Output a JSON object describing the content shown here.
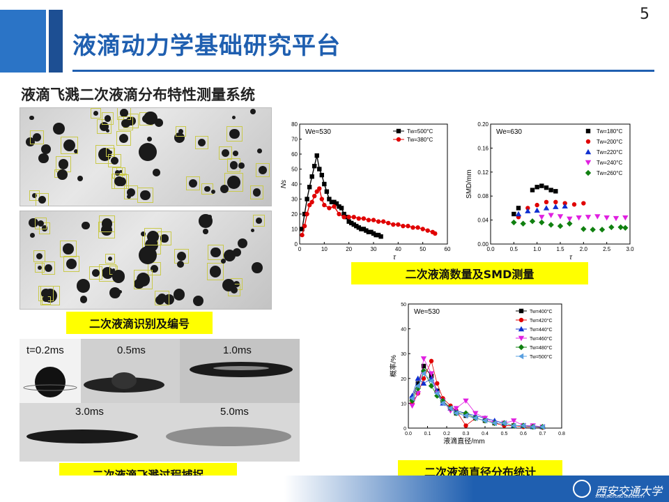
{
  "page_number": "5",
  "title": "液滴动力学基础研究平台",
  "subtitle": "液滴飞溅二次液滴分布特性测量系统",
  "captions": {
    "identify": "二次液滴识别及编号",
    "count_smd": "二次液滴数量及SMD测量",
    "splash": "二次液滴飞溅过程捕捉",
    "diameter": "二次液滴直径分布统计"
  },
  "splash_labels": [
    "t=0.2ms",
    "0.5ms",
    "1.0ms",
    "3.0ms",
    "5.0ms"
  ],
  "logo": {
    "name": "西安交通大学",
    "sub": "XI'AN JIAOTONG UNIVERSITY"
  },
  "colors": {
    "title_blue": "#1f5fb0",
    "bar_light": "#2b74c6",
    "caption_bg": "#ffff00"
  },
  "chart_data": [
    {
      "type": "line",
      "annotation": "We≈530",
      "xlabel": "τ",
      "ylabel": "Ns",
      "xlim": [
        0,
        60
      ],
      "ylim": [
        0,
        80
      ],
      "xticks": [
        0,
        10,
        20,
        30,
        40,
        50,
        60
      ],
      "yticks": [
        0,
        10,
        20,
        30,
        40,
        50,
        60,
        70,
        80
      ],
      "series": [
        {
          "name": "Tw=500°C",
          "color": "#000000",
          "marker": "square",
          "x": [
            1,
            2,
            3,
            4,
            5,
            6,
            7,
            8,
            9,
            10,
            11,
            12,
            13,
            14,
            15,
            16,
            17,
            18,
            19,
            20,
            21,
            22,
            23,
            24,
            25,
            26,
            27,
            28,
            29,
            30,
            31,
            32,
            33
          ],
          "y": [
            10,
            20,
            30,
            38,
            45,
            52,
            59,
            50,
            46,
            40,
            35,
            30,
            28,
            28,
            27,
            25,
            24,
            20,
            18,
            15,
            14,
            13,
            12,
            11,
            10,
            10,
            9,
            8,
            8,
            7,
            6,
            6,
            5
          ]
        },
        {
          "name": "Tw=380°C",
          "color": "#e00000",
          "marker": "circle",
          "x": [
            1,
            2,
            3,
            4,
            5,
            6,
            7,
            8,
            9,
            10,
            12,
            14,
            16,
            18,
            20,
            22,
            24,
            26,
            28,
            30,
            32,
            34,
            36,
            38,
            40,
            42,
            44,
            46,
            48,
            50,
            52,
            54,
            55
          ],
          "y": [
            6,
            12,
            20,
            26,
            28,
            32,
            35,
            37,
            30,
            26,
            24,
            25,
            20,
            18,
            18,
            18,
            17,
            17,
            16,
            16,
            15,
            15,
            14,
            13,
            13,
            12,
            12,
            11,
            11,
            10,
            9,
            8,
            7
          ]
        }
      ]
    },
    {
      "type": "scatter",
      "annotation": "We≈630",
      "xlabel": "τ",
      "ylabel": "SMD/mm",
      "xlim": [
        0,
        3.0
      ],
      "ylim": [
        0,
        0.2
      ],
      "xticks": [
        0.0,
        0.5,
        1.0,
        1.5,
        2.0,
        2.5,
        3.0
      ],
      "yticks": [
        0.0,
        0.04,
        0.08,
        0.12,
        0.16,
        0.2
      ],
      "series": [
        {
          "name": "Tw=180°C",
          "color": "#000000",
          "marker": "square",
          "x": [
            0.5,
            0.6,
            0.9,
            1.0,
            1.1,
            1.2,
            1.3,
            1.4
          ],
          "y": [
            0.05,
            0.06,
            0.09,
            0.095,
            0.097,
            0.094,
            0.09,
            0.088
          ]
        },
        {
          "name": "Tw=200°C",
          "color": "#e00000",
          "marker": "circle",
          "x": [
            0.6,
            0.8,
            1.0,
            1.2,
            1.4,
            1.6,
            1.8,
            2.0
          ],
          "y": [
            0.045,
            0.06,
            0.065,
            0.07,
            0.07,
            0.068,
            0.066,
            0.068
          ]
        },
        {
          "name": "Tw=220°C",
          "color": "#1030d0",
          "marker": "triangle",
          "x": [
            0.6,
            0.8,
            1.0,
            1.2,
            1.4,
            1.6
          ],
          "y": [
            0.05,
            0.055,
            0.056,
            0.06,
            0.062,
            0.063
          ]
        },
        {
          "name": "Tw=240°C",
          "color": "#e020e0",
          "marker": "triangle-down",
          "x": [
            1.1,
            1.3,
            1.5,
            1.7,
            1.9,
            2.1,
            2.3,
            2.5,
            2.7,
            2.9
          ],
          "y": [
            0.045,
            0.048,
            0.046,
            0.042,
            0.044,
            0.045,
            0.046,
            0.044,
            0.043,
            0.044
          ]
        },
        {
          "name": "Tw=260°C",
          "color": "#108010",
          "marker": "diamond",
          "x": [
            0.5,
            0.7,
            0.9,
            1.1,
            1.3,
            1.5,
            1.7,
            2.0,
            2.2,
            2.4,
            2.6,
            2.8,
            2.9
          ],
          "y": [
            0.036,
            0.034,
            0.038,
            0.036,
            0.032,
            0.03,
            0.034,
            0.025,
            0.024,
            0.024,
            0.028,
            0.028,
            0.027
          ]
        }
      ]
    },
    {
      "type": "line",
      "annotation": "We≈530",
      "xlabel": "液滴直径/mm",
      "ylabel": "概率/%",
      "xlim": [
        0,
        0.8
      ],
      "ylim": [
        0,
        50
      ],
      "xticks": [
        0.0,
        0.1,
        0.2,
        0.3,
        0.4,
        0.5,
        0.6,
        0.7,
        0.8
      ],
      "yticks": [
        0,
        10,
        20,
        30,
        40,
        50
      ],
      "series": [
        {
          "name": "Tw=400°C",
          "color": "#000000",
          "marker": "square",
          "x": [
            0.02,
            0.05,
            0.08,
            0.12,
            0.15,
            0.18,
            0.22,
            0.25,
            0.3,
            0.35,
            0.4,
            0.45,
            0.5,
            0.55,
            0.6,
            0.65,
            0.7
          ],
          "y": [
            12,
            18,
            25,
            21,
            15,
            11,
            8,
            6,
            5,
            4,
            3,
            2,
            2,
            1,
            1,
            0.5,
            0.5
          ]
        },
        {
          "name": "Tw=420°C",
          "color": "#e00000",
          "marker": "circle",
          "x": [
            0.02,
            0.05,
            0.08,
            0.12,
            0.15,
            0.18,
            0.22,
            0.25,
            0.3,
            0.35,
            0.4,
            0.45,
            0.5,
            0.55,
            0.6,
            0.65,
            0.7
          ],
          "y": [
            10,
            14,
            20,
            27,
            18,
            12,
            9,
            7,
            1,
            4,
            3,
            2,
            1,
            1,
            0.5,
            0.5,
            0.2
          ]
        },
        {
          "name": "Tw=440°C",
          "color": "#1030d0",
          "marker": "triangle",
          "x": [
            0.02,
            0.05,
            0.08,
            0.12,
            0.15,
            0.18,
            0.22,
            0.25,
            0.3,
            0.35,
            0.4,
            0.45,
            0.5,
            0.55,
            0.6,
            0.65,
            0.7
          ],
          "y": [
            13,
            20,
            18,
            20,
            15,
            10,
            8,
            7,
            6,
            5,
            4,
            3,
            2,
            1,
            1,
            0.5,
            0.5
          ]
        },
        {
          "name": "Tw=460°C",
          "color": "#e020e0",
          "marker": "triangle-down",
          "x": [
            0.02,
            0.05,
            0.08,
            0.12,
            0.15,
            0.18,
            0.22,
            0.25,
            0.3,
            0.35,
            0.4,
            0.45,
            0.5,
            0.55,
            0.6,
            0.65,
            0.7
          ],
          "y": [
            9,
            14,
            28,
            22,
            14,
            11,
            7,
            8,
            11,
            6,
            4,
            2,
            2,
            3,
            1,
            1,
            0.5
          ]
        },
        {
          "name": "Tw=480°C",
          "color": "#108010",
          "marker": "diamond",
          "x": [
            0.02,
            0.05,
            0.08,
            0.12,
            0.15,
            0.18,
            0.22,
            0.25,
            0.3,
            0.35,
            0.4,
            0.45,
            0.5,
            0.55,
            0.6,
            0.65,
            0.7
          ],
          "y": [
            11,
            16,
            23,
            17,
            13,
            11,
            8,
            6,
            6,
            4,
            3,
            2,
            2,
            1,
            1,
            0.5,
            0.5
          ]
        },
        {
          "name": "Tw=500°C",
          "color": "#5aa0e0",
          "marker": "triangle-left",
          "x": [
            0.02,
            0.05,
            0.08,
            0.12,
            0.15,
            0.18,
            0.22,
            0.25,
            0.3,
            0.35,
            0.4,
            0.45,
            0.5,
            0.55,
            0.6,
            0.65,
            0.7
          ],
          "y": [
            12,
            17,
            22,
            19,
            14,
            10,
            8,
            6,
            5,
            4,
            3,
            2,
            2,
            1,
            1,
            0.5,
            0.5
          ]
        }
      ]
    }
  ]
}
